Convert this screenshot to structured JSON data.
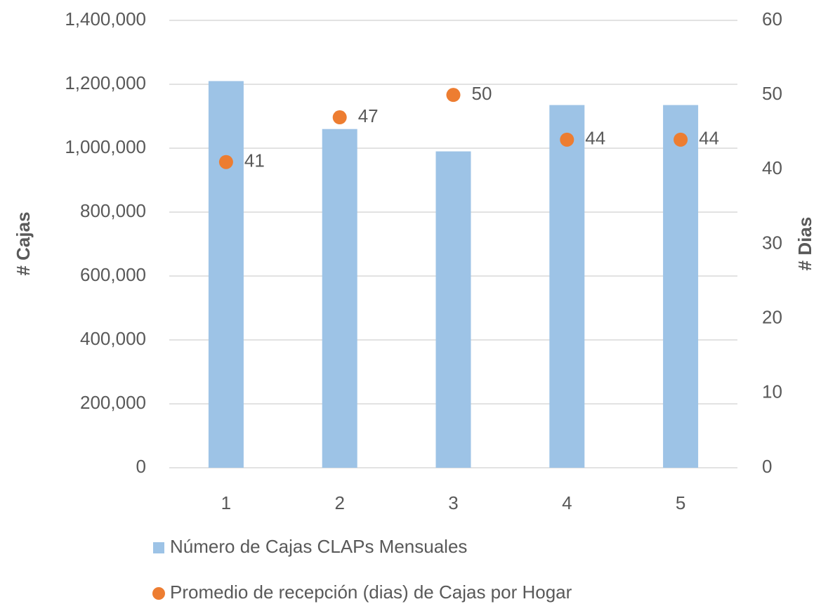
{
  "chart_data": {
    "type": "bar",
    "categories": [
      "1",
      "2",
      "3",
      "4",
      "5"
    ],
    "series": [
      {
        "name": "Número de Cajas CLAPs Mensuales",
        "type": "bar",
        "color": "#9dc3e6",
        "axis": "y",
        "values": [
          1210000,
          1060000,
          990000,
          1135000,
          1135000
        ]
      },
      {
        "name": "Promedio de recepción (dias) de Cajas por Hogar",
        "type": "scatter",
        "color": "#ed7d31",
        "axis": "y2",
        "values": [
          41,
          47,
          50,
          44,
          44
        ]
      }
    ],
    "ylabel": "# Cajas",
    "y2label": "# Dias",
    "ylim": [
      0,
      1400000
    ],
    "yticks": [
      0,
      {
        "value": 200000,
        "label": "200,000"
      },
      {
        "value": 400000,
        "label": "400,000"
      },
      {
        "value": 600000,
        "label": "600,000"
      },
      {
        "value": 800000,
        "label": "800,000"
      },
      {
        "value": 1000000,
        "label": "1,000,000"
      },
      {
        "value": 1200000,
        "label": "1,200,000"
      },
      {
        "value": 1400000,
        "label": "1,400,000"
      }
    ],
    "y2lim": [
      0,
      60
    ],
    "y2ticks": [
      0,
      10,
      20,
      30,
      40,
      50,
      60
    ],
    "grid": true,
    "legend": "bottom"
  }
}
